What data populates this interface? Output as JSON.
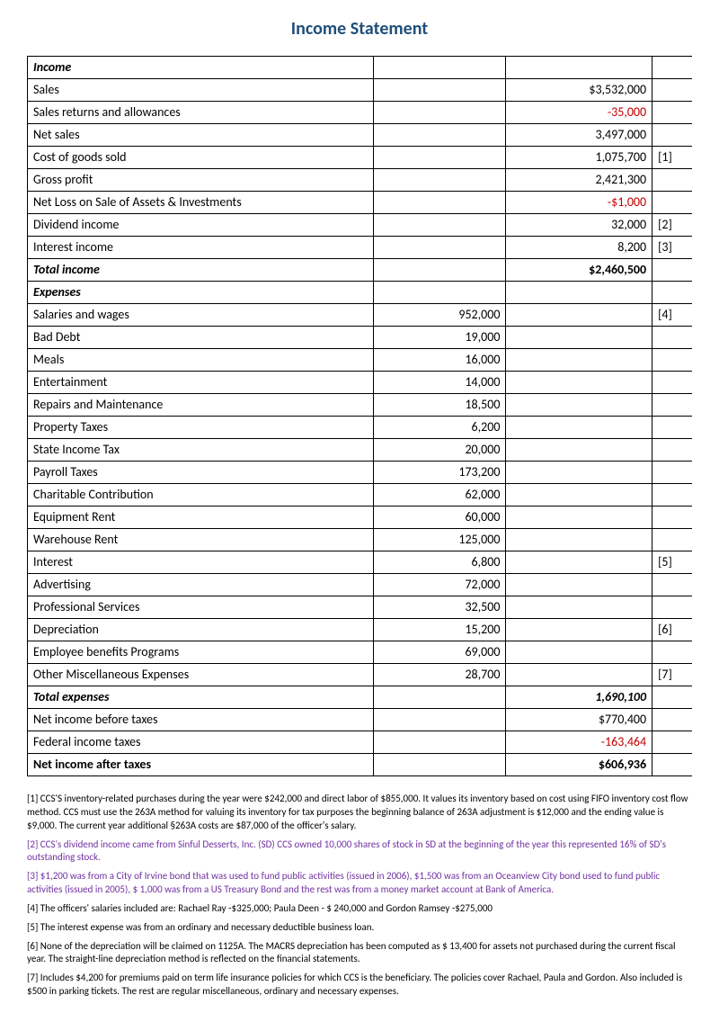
{
  "title": "Income Statement",
  "colors": {
    "title": "#1f4e79",
    "negative": "#c00000",
    "footnote_alt": "#7030a0",
    "border": "#000000",
    "background": "#ffffff"
  },
  "rows": [
    {
      "label": "Income",
      "col2": "",
      "col3": "",
      "note": "",
      "label_bold": true,
      "label_italic": true
    },
    {
      "label": "Sales",
      "col2": "",
      "col3": "$3,532,000",
      "note": ""
    },
    {
      "label": "Sales returns and allowances",
      "col2": "",
      "col3": "-35,000",
      "note": "",
      "col3_neg": true
    },
    {
      "label": "Net sales",
      "col2": "",
      "col3": "3,497,000",
      "note": ""
    },
    {
      "label": "Cost of goods sold",
      "col2": "",
      "col3": "1,075,700",
      "note": "[1]"
    },
    {
      "label": "Gross profit",
      "col2": "",
      "col3": "2,421,300",
      "note": ""
    },
    {
      "label": "Net Loss on Sale of Assets & Investments",
      "col2": "",
      "col3": "-$1,000",
      "note": "",
      "col3_neg": true
    },
    {
      "label": "Dividend income",
      "col2": "",
      "col3": "32,000",
      "note": "[2]"
    },
    {
      "label": "Interest income",
      "col2": "",
      "col3": "8,200",
      "note": "[3]"
    },
    {
      "label": "Total income",
      "col2": "",
      "col3": "$2,460,500",
      "note": "",
      "label_bold": true,
      "label_italic": true,
      "col3_bold": true
    },
    {
      "label": "Expenses",
      "col2": "",
      "col3": "",
      "note": "",
      "label_bold": true,
      "label_italic": true
    },
    {
      "label": "Salaries and wages",
      "col2": "952,000",
      "col3": "",
      "note": "[4]"
    },
    {
      "label": "Bad Debt",
      "col2": "19,000",
      "col3": "",
      "note": ""
    },
    {
      "label": "Meals",
      "col2": "16,000",
      "col3": "",
      "note": ""
    },
    {
      "label": "Entertainment",
      "col2": "14,000",
      "col3": "",
      "note": ""
    },
    {
      "label": "Repairs and Maintenance",
      "col2": "18,500",
      "col3": "",
      "note": ""
    },
    {
      "label": "Property Taxes",
      "col2": "6,200",
      "col3": "",
      "note": ""
    },
    {
      "label": "State Income Tax",
      "col2": "20,000",
      "col3": "",
      "note": ""
    },
    {
      "label": "Payroll Taxes",
      "col2": "173,200",
      "col3": "",
      "note": ""
    },
    {
      "label": "Charitable Contribution",
      "col2": "62,000",
      "col3": "",
      "note": ""
    },
    {
      "label": "Equipment Rent",
      "col2": "60,000",
      "col3": "",
      "note": ""
    },
    {
      "label": "Warehouse Rent",
      "col2": "125,000",
      "col3": "",
      "note": ""
    },
    {
      "label": "Interest",
      "col2": "6,800",
      "col3": "",
      "note": "[5]"
    },
    {
      "label": "Advertising",
      "col2": "72,000",
      "col3": "",
      "note": ""
    },
    {
      "label": "Professional Services",
      "col2": "32,500",
      "col3": "",
      "note": ""
    },
    {
      "label": "Depreciation",
      "col2": "15,200",
      "col3": "",
      "note": "[6]"
    },
    {
      "label": "Employee benefits Programs",
      "col2": "69,000",
      "col3": "",
      "note": ""
    },
    {
      "label": "Other Miscellaneous Expenses",
      "col2": "28,700",
      "col3": "",
      "note": "[7]"
    },
    {
      "label": "Total expenses",
      "col2": "",
      "col3": "1,690,100",
      "note": "",
      "label_bold": true,
      "label_italic": true,
      "col3_bold": true,
      "col3_italic": true
    },
    {
      "label": "Net income before taxes",
      "col2": "",
      "col3": "$770,400",
      "note": ""
    },
    {
      "label": "Federal income taxes",
      "col2": "",
      "col3": "-163,464",
      "note": "",
      "col3_neg": true
    },
    {
      "label": "Net income after taxes",
      "col2": "",
      "col3": "$606,936",
      "note": "",
      "label_bold": true,
      "col3_bold": true
    }
  ],
  "footnotes": [
    {
      "text": "[1] CCS'S inventory-related purchases during the year were $242,000 and direct labor of $855,000.  It values its inventory based on cost using FIFO inventory cost flow method. CCS must use the 263A method for valuing its inventory for tax purposes the beginning balance of 263A adjustment is $12,000 and the ending value is $9,000. The current year additional §263A costs are $87,000 of the officer's salary.",
      "alt": false
    },
    {
      "text": "[2] CCS's dividend income came from Sinful Desserts, Inc. (SD) CCS owned 10,000 shares of stock in SD at the beginning of the year this represented 16% of SD's outstanding stock.",
      "alt": true
    },
    {
      "text": "[3] $1,200 was from a City of Irvine bond that was used to fund public activities (issued in 2006), $1,500 was from an Oceanview City bond used to fund public activities (issued in 2005), $ 1,000 was from a US Treasury Bond and the rest was from a money market account at Bank of America.",
      "alt": true
    },
    {
      "text": "[4] The officers' salaries included are: Rachael Ray -$325,000; Paula Deen - $ 240,000 and Gordon Ramsey -$275,000",
      "alt": false
    },
    {
      "text": "[5] The interest expense was from an ordinary and necessary deductible business loan.",
      "alt": false
    },
    {
      "text": "[6] None of the depreciation will be claimed on 1125A.  The MACRS depreciation has been computed as $ 13,400 for assets not purchased during the current fiscal year. The straight-line depreciation method is reflected on the financial statements.",
      "alt": false
    },
    {
      "text": "[7] Includes $4,200 for premiums paid on term life insurance policies for which CCS is the beneficiary.  The policies cover Rachael, Paula and Gordon. Also included is $500 in parking tickets. The rest are regular miscellaneous, ordinary and necessary expenses.",
      "alt": false
    }
  ]
}
